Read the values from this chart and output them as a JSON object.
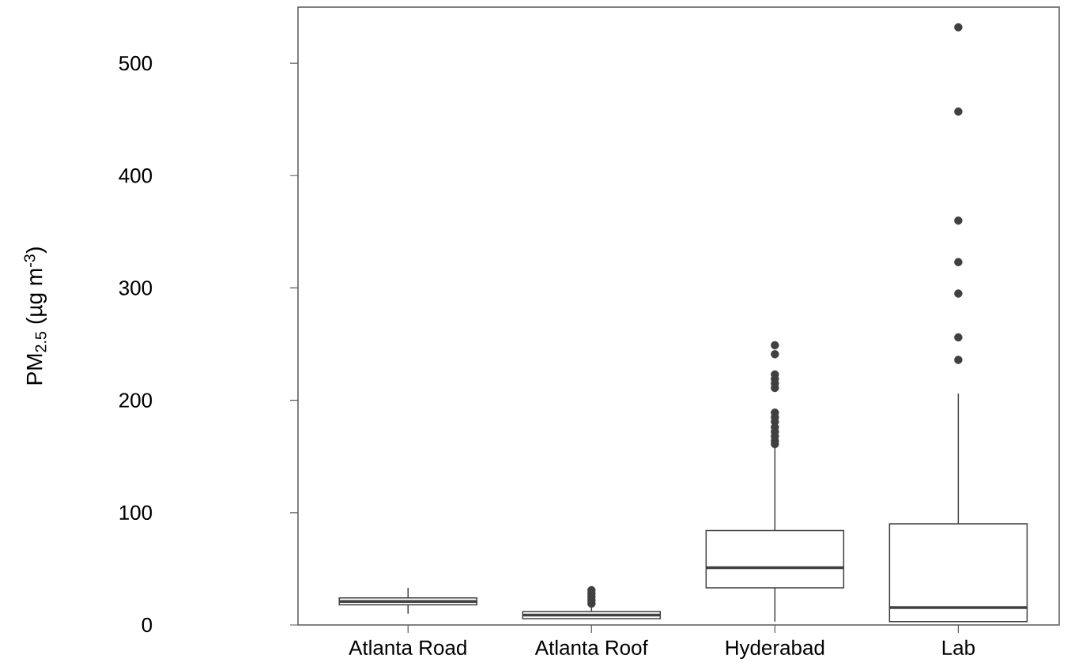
{
  "chart_data": {
    "type": "box",
    "ylabel": "PM$_{2.5}$ (µg m$^{-3}$)",
    "categories": [
      "Atlanta Road",
      "Atlanta Roof",
      "Hyderabad",
      "Lab"
    ],
    "color": "#404040",
    "boxes": [
      {
        "low": 10,
        "q1": 18,
        "median": 21,
        "q3": 24,
        "high": 33
      },
      {
        "low": 5.6,
        "q1": 5.6,
        "median": 8.8,
        "q3": 12,
        "high": 17,
        "outliers": [
          19,
          22,
          25,
          28,
          31
        ]
      },
      {
        "low": 3,
        "q1": 33,
        "median": 51,
        "q3": 84,
        "high": 158,
        "outliers": [
          249,
          241,
          223,
          219,
          215,
          211,
          189,
          185,
          181,
          176,
          172,
          168,
          164,
          161
        ]
      },
      {
        "low": 3,
        "q1": 3,
        "median": 15.5,
        "q3": 90,
        "high": 206,
        "outliers": [
          532,
          457,
          360,
          323,
          295,
          256,
          236
        ]
      }
    ],
    "ylim": [
      0,
      550
    ],
    "yticks": [
      0,
      100,
      200,
      300,
      400,
      500
    ]
  }
}
